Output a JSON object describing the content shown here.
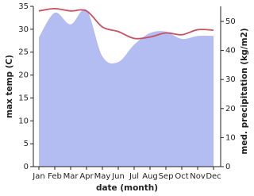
{
  "chart_data": {
    "type": "line",
    "x_label": "date (month)",
    "y_label": "max temp (C)",
    "y2_label": "med. precipitation (kg/m2)",
    "categories": [
      "Jan",
      "Feb",
      "Mar",
      "Apr",
      "May",
      "Jun",
      "Jul",
      "Aug",
      "Sep",
      "Oct",
      "Nov",
      "Dec"
    ],
    "series": [
      {
        "type": "area",
        "axis": "y2",
        "color": "#b3bdf2",
        "values": [
          44.5,
          53,
          49,
          54,
          38,
          36,
          42,
          46,
          46.5,
          44,
          45,
          45
        ]
      },
      {
        "type": "line",
        "color": "#c8505f",
        "values": [
          34,
          34.5,
          34,
          34,
          30.5,
          29.5,
          28,
          28.3,
          29.2,
          28.8,
          29.9,
          29.8
        ]
      }
    ],
    "ylim": [
      0,
      35
    ],
    "yticks": [
      0,
      5,
      10,
      15,
      20,
      25,
      30,
      35
    ],
    "y2lim": [
      0,
      55.2
    ],
    "y2ticks": [
      0,
      10,
      20,
      30,
      40,
      50
    ]
  }
}
